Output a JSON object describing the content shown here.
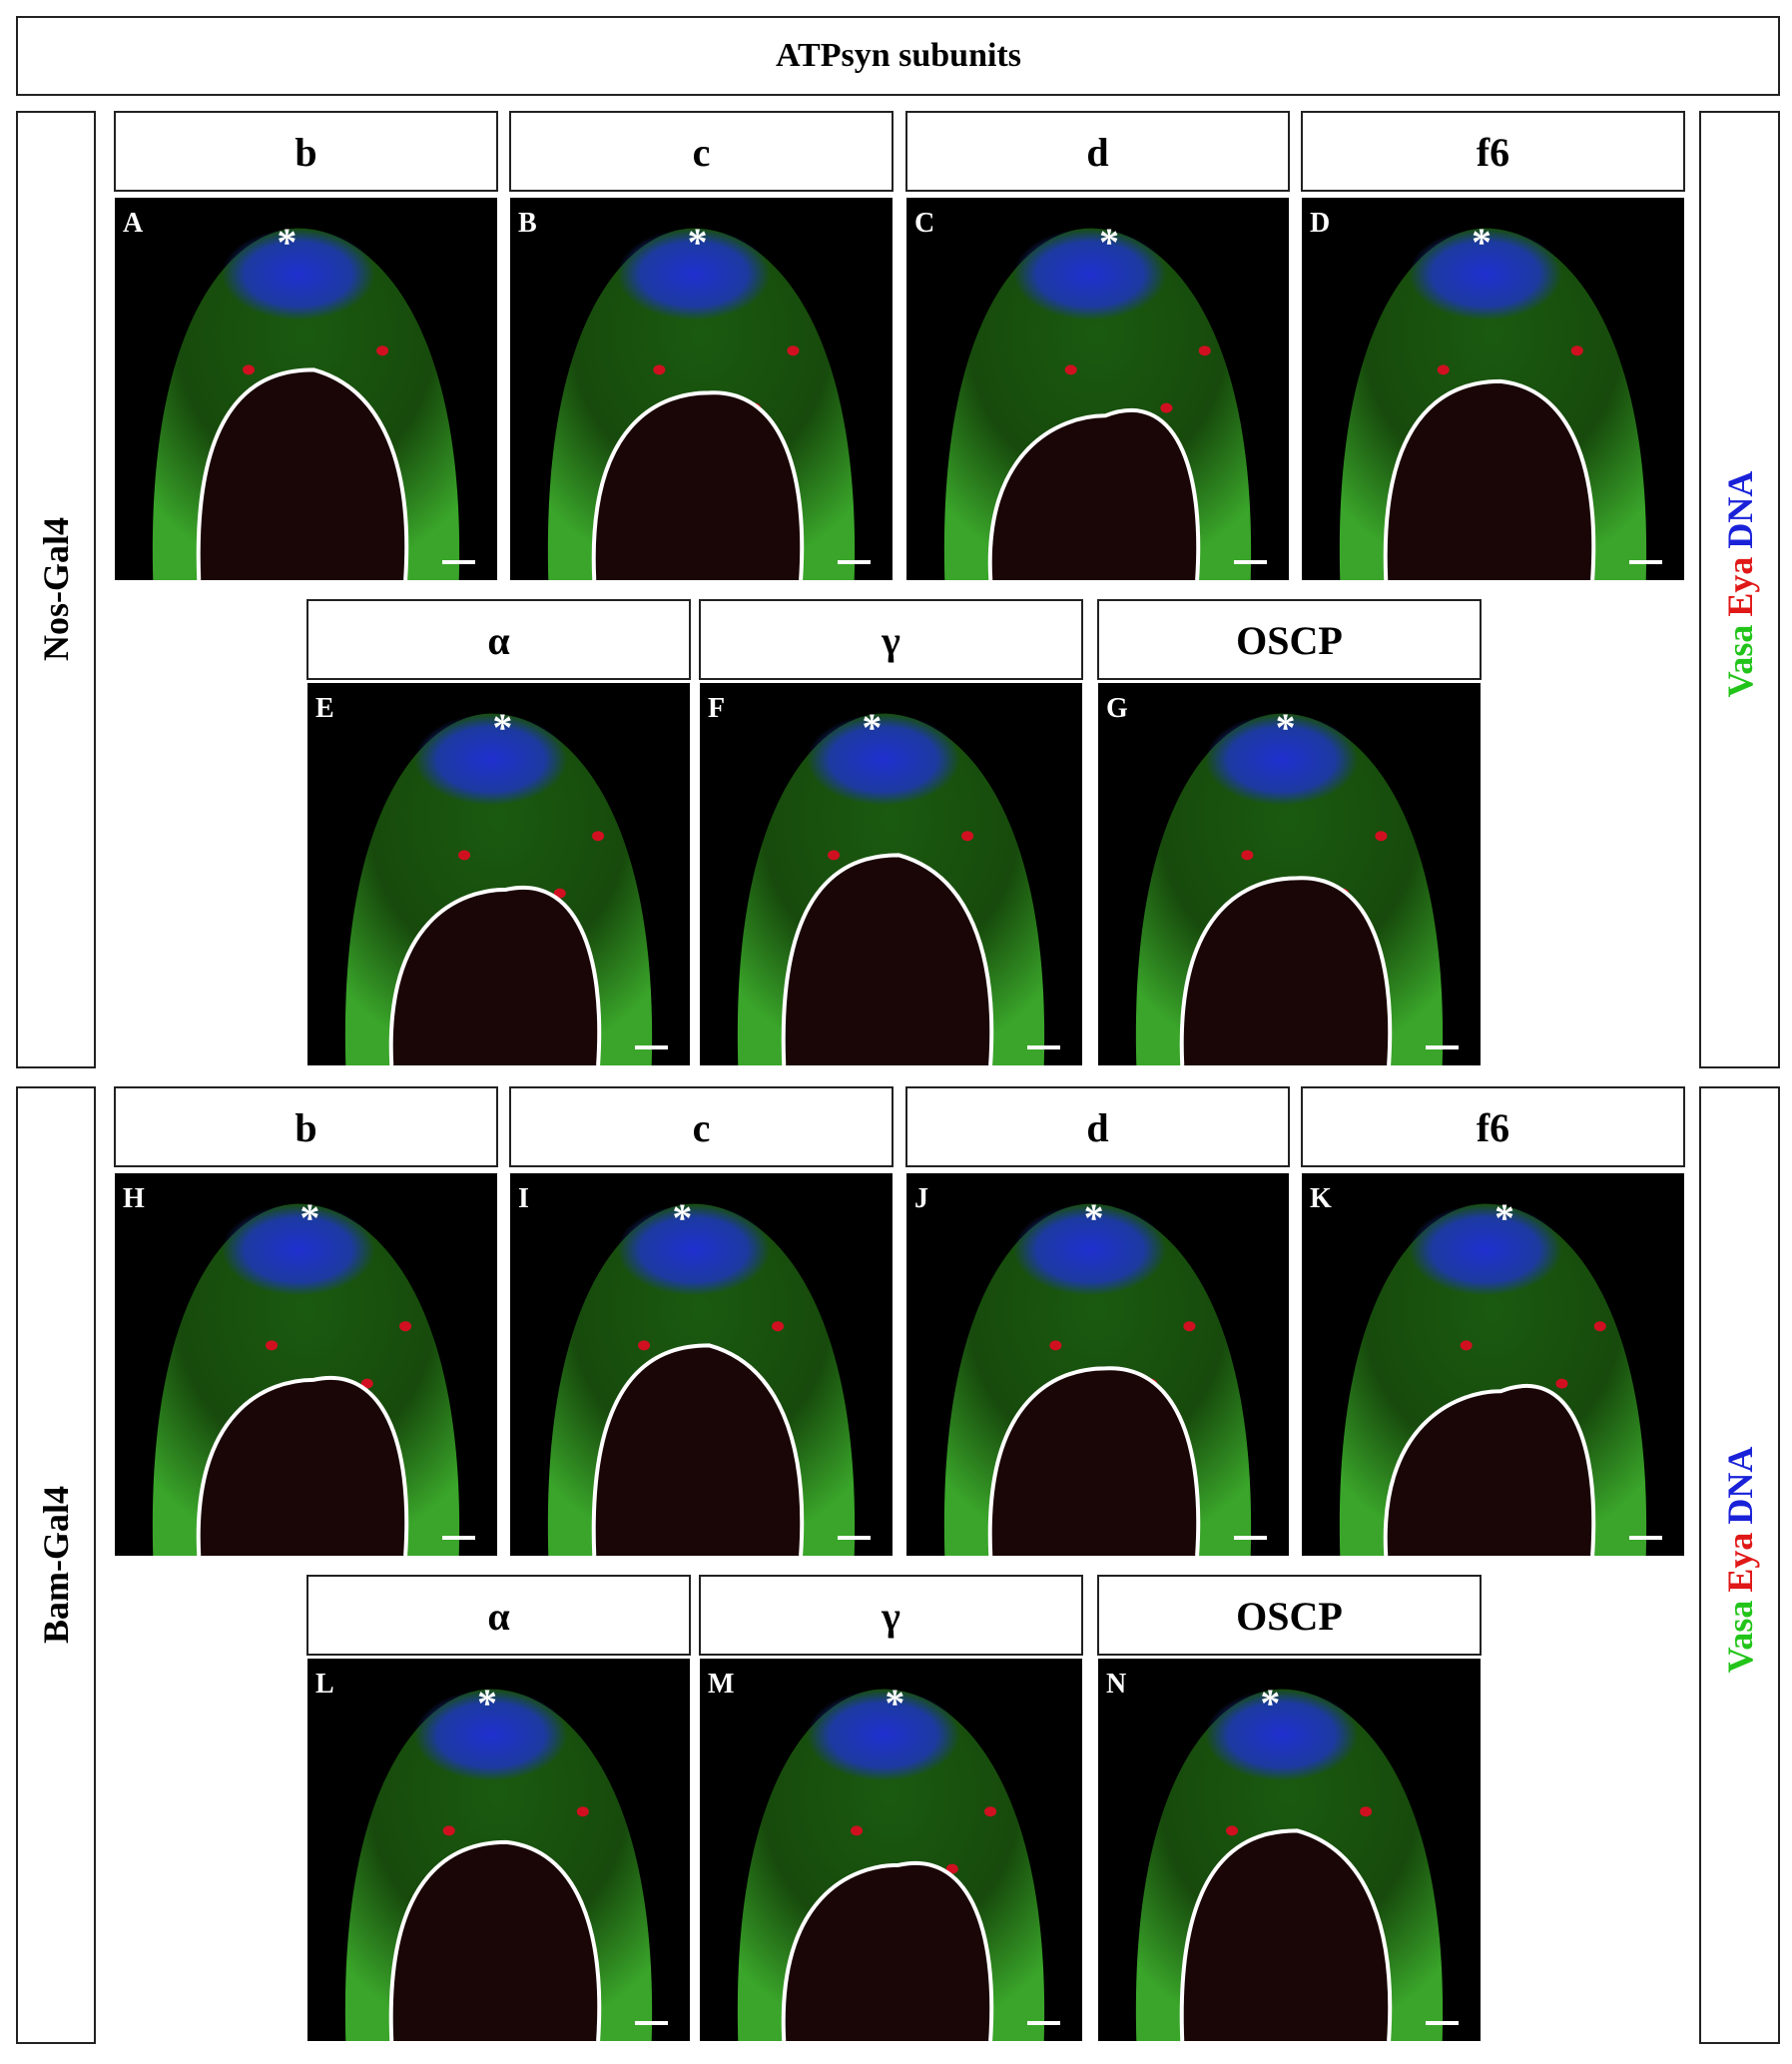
{
  "header": {
    "title": "ATPsyn subunits"
  },
  "groups": [
    {
      "label": "Nos-Gal4",
      "panels": [
        {
          "subunit": "b",
          "letter": "A",
          "marker": "*"
        },
        {
          "subunit": "c",
          "letter": "B",
          "marker": "*"
        },
        {
          "subunit": "d",
          "letter": "C",
          "marker": "*"
        },
        {
          "subunit": "f6",
          "letter": "D",
          "marker": "*"
        },
        {
          "subunit": "α",
          "letter": "E",
          "marker": "*"
        },
        {
          "subunit": "γ",
          "letter": "F",
          "marker": "*"
        },
        {
          "subunit": "OSCP",
          "letter": "G",
          "marker": "*"
        }
      ]
    },
    {
      "label": "Bam-Gal4",
      "panels": [
        {
          "subunit": "b",
          "letter": "H",
          "marker": "*"
        },
        {
          "subunit": "c",
          "letter": "I",
          "marker": "*"
        },
        {
          "subunit": "d",
          "letter": "J",
          "marker": "*"
        },
        {
          "subunit": "f6",
          "letter": "K",
          "marker": "*"
        },
        {
          "subunit": "α",
          "letter": "L",
          "marker": "*"
        },
        {
          "subunit": "γ",
          "letter": "M",
          "marker": "*"
        },
        {
          "subunit": "OSCP",
          "letter": "N",
          "marker": "*"
        }
      ]
    }
  ],
  "legend": [
    {
      "text": "Vasa"
    },
    {
      "text": "Eya"
    },
    {
      "text": "DNA"
    }
  ]
}
